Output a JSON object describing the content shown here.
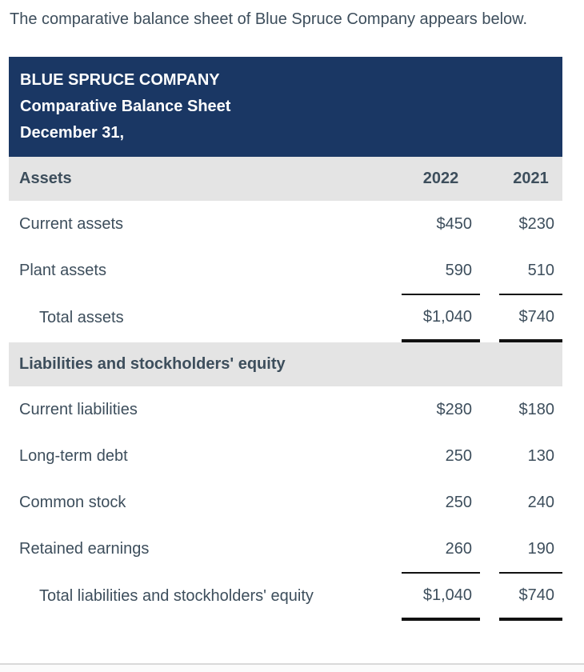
{
  "intro": {
    "text": "The comparative balance sheet of Blue Spruce Company appears below."
  },
  "header": {
    "company": "BLUE SPRUCE COMPANY",
    "report_title": "Comparative Balance Sheet",
    "date_line": "December 31,"
  },
  "columns": {
    "y2022": "2022",
    "y2021": "2021"
  },
  "assets": {
    "section_label": "Assets",
    "rows": [
      {
        "label": "Current assets",
        "v2022": "$450",
        "v2021": "$230"
      },
      {
        "label": "Plant assets",
        "v2022": "590",
        "v2021": "510"
      },
      {
        "label": "Total assets",
        "v2022": "$1,040",
        "v2021": "$740"
      }
    ]
  },
  "liabilities": {
    "section_label": "Liabilities and stockholders' equity",
    "rows": [
      {
        "label": "Current liabilities",
        "v2022": "$280",
        "v2021": "$180"
      },
      {
        "label": "Long-term debt",
        "v2022": "250",
        "v2021": "130"
      },
      {
        "label": "Common stock",
        "v2022": "250",
        "v2021": "240"
      },
      {
        "label": "Retained earnings",
        "v2022": "260",
        "v2021": "190"
      },
      {
        "label": "Total liabilities and stockholders' equity",
        "v2022": "$1,040",
        "v2021": "$740"
      }
    ]
  },
  "colors": {
    "header_bg": "#1a3764",
    "header_text": "#ffffff",
    "section_band_bg": "#e4e4e4",
    "body_text": "#3d4e5c",
    "accounting_rule": "#111111",
    "bottom_divider": "#d9d9d9"
  }
}
